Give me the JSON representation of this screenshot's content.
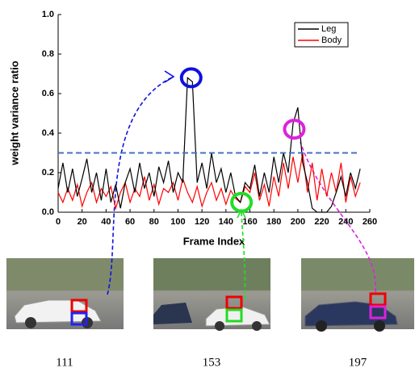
{
  "chart_data": {
    "type": "line",
    "x_label": "Frame Index",
    "y_label": "weight variance ratio",
    "x": [
      0,
      4,
      8,
      12,
      16,
      20,
      24,
      28,
      32,
      36,
      40,
      44,
      48,
      52,
      56,
      60,
      64,
      68,
      72,
      76,
      80,
      84,
      88,
      92,
      96,
      100,
      104,
      108,
      112,
      116,
      120,
      124,
      128,
      132,
      136,
      140,
      144,
      148,
      152,
      156,
      160,
      164,
      168,
      172,
      176,
      180,
      184,
      188,
      192,
      196,
      200,
      204,
      208,
      212,
      216,
      220,
      224,
      228,
      232,
      236,
      240,
      244,
      248,
      252
    ],
    "series": [
      {
        "name": "Leg",
        "color": "#000000",
        "values": [
          0.12,
          0.25,
          0.1,
          0.22,
          0.08,
          0.17,
          0.27,
          0.1,
          0.2,
          0.06,
          0.22,
          0.05,
          0.14,
          0.02,
          0.15,
          0.22,
          0.1,
          0.25,
          0.12,
          0.2,
          0.08,
          0.23,
          0.15,
          0.26,
          0.1,
          0.2,
          0.15,
          0.68,
          0.66,
          0.15,
          0.25,
          0.12,
          0.3,
          0.15,
          0.22,
          0.1,
          0.2,
          0.08,
          0.05,
          0.15,
          0.12,
          0.24,
          0.08,
          0.2,
          0.1,
          0.28,
          0.15,
          0.3,
          0.2,
          0.45,
          0.53,
          0.25,
          0.15,
          0.02,
          0,
          0,
          0,
          0.03,
          0.1,
          0.18,
          0.08,
          0.2,
          0.12,
          0.22
        ]
      },
      {
        "name": "Body",
        "color": "#ff0000",
        "values": [
          0.1,
          0.05,
          0.12,
          0.06,
          0.14,
          0.03,
          0.1,
          0.15,
          0.05,
          0.12,
          0.08,
          0.13,
          0.02,
          0.1,
          0.15,
          0.05,
          0.12,
          0.08,
          0.18,
          0.06,
          0.14,
          0.04,
          0.12,
          0.1,
          0.15,
          0.06,
          0.17,
          0.1,
          0.05,
          0.13,
          0.03,
          0.1,
          0.15,
          0.06,
          0.12,
          0.04,
          0.11,
          0.07,
          0.05,
          0.13,
          0.1,
          0.2,
          0.06,
          0.14,
          0.03,
          0.18,
          0.08,
          0.25,
          0.12,
          0.28,
          0.15,
          0.3,
          0.1,
          0.25,
          0.06,
          0.22,
          0.08,
          0.2,
          0.1,
          0.25,
          0.05,
          0.18,
          0.08,
          0.15
        ]
      }
    ],
    "xlim": [
      0,
      260
    ],
    "ylim": [
      0,
      1.0
    ],
    "xticks": [
      0,
      20,
      40,
      60,
      80,
      100,
      120,
      140,
      160,
      180,
      200,
      220,
      240,
      260
    ],
    "yticks": [
      {
        "value": 0,
        "label": "0.0"
      },
      {
        "value": 0.2,
        "label": "0.2"
      },
      {
        "value": 0.4,
        "label": "0.4"
      },
      {
        "value": 0.6,
        "label": "0.6"
      },
      {
        "value": 0.8,
        "label": "0.8"
      },
      {
        "value": 1.0,
        "label": "1.0"
      }
    ],
    "threshold": 0.3,
    "threshold_color": "#4472c4",
    "legend": "top-right",
    "highlights": [
      {
        "x": 111,
        "y": 0.68,
        "color": "#1010e0",
        "label": "111"
      },
      {
        "x": 153,
        "y": 0.05,
        "color": "#22dd22",
        "label": "153"
      },
      {
        "x": 197,
        "y": 0.42,
        "color": "#dd22dd",
        "label": "197"
      }
    ]
  }
}
